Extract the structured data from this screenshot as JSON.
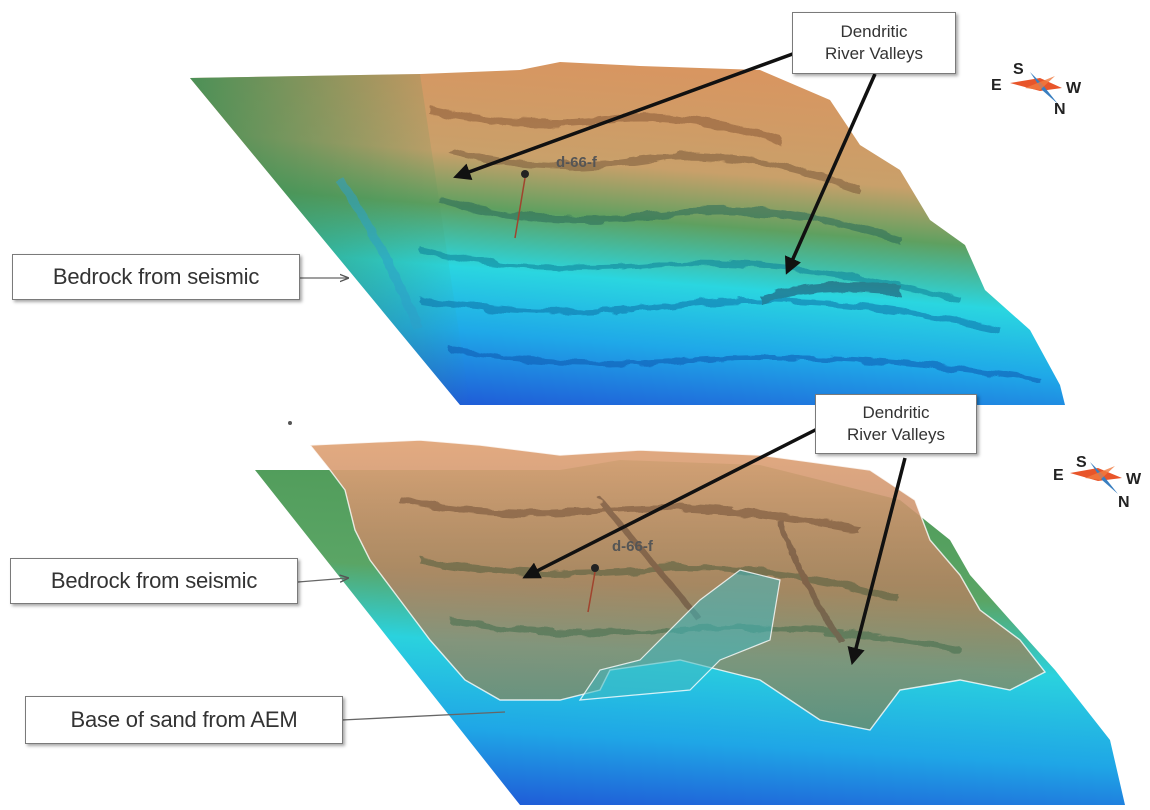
{
  "panels": [
    {
      "id": "top",
      "labels": {
        "valleys": [
          "Dendritic",
          "River Valleys"
        ],
        "bedrock": "Bedrock from seismic",
        "well": "d-66-f"
      },
      "compass": {
        "north": "N",
        "south": "S",
        "east": "E",
        "west": "W"
      }
    },
    {
      "id": "bottom",
      "labels": {
        "valleys": [
          "Dendritic",
          "River Valleys"
        ],
        "bedrock": "Bedrock from seismic",
        "sand": "Base of sand from AEM",
        "well": "d-66-f"
      },
      "compass": {
        "north": "N",
        "south": "S",
        "east": "E",
        "west": "W"
      }
    }
  ],
  "colors": {
    "deep_blue": "#1f5fd8",
    "cyan": "#22e3f0",
    "green": "#4f9a58",
    "tan": "#d99560",
    "arrow": "#111111",
    "compass_red": "#e8552a",
    "compass_blue": "#3a7fc0",
    "sand_overlay": "#b98060"
  }
}
